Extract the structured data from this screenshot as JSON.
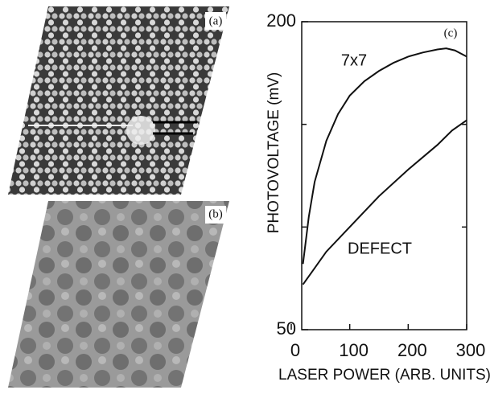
{
  "panels": {
    "a": "(a)",
    "b": "(b)"
  },
  "chart_data": {
    "type": "line",
    "panel_label": "(c)",
    "x_label": "LASER POWER (ARB. UNITS)",
    "y_label": "PHOTOVOLTAGE (mV)",
    "xlim": [
      0,
      300
    ],
    "xticks": [
      0,
      100,
      200,
      300
    ],
    "ylim": [
      50,
      200
    ],
    "yticks": [
      50,
      200
    ],
    "yticks_minor": [
      100,
      150
    ],
    "series": [
      {
        "name": "7x7",
        "color": "#111111",
        "x": [
          20,
          30,
          40,
          60,
          80,
          100,
          125,
          150,
          175,
          200,
          225,
          250,
          265,
          280,
          300
        ],
        "values": [
          82,
          105,
          122,
          142,
          155,
          164,
          171,
          176,
          180,
          183,
          185,
          186.5,
          187,
          186,
          183
        ]
      },
      {
        "name": "DEFECT",
        "color": "#111111",
        "x": [
          20,
          40,
          60,
          100,
          150,
          200,
          250,
          275,
          300
        ],
        "values": [
          72,
          80,
          88,
          100,
          115,
          128,
          140,
          147,
          152
        ]
      }
    ]
  }
}
